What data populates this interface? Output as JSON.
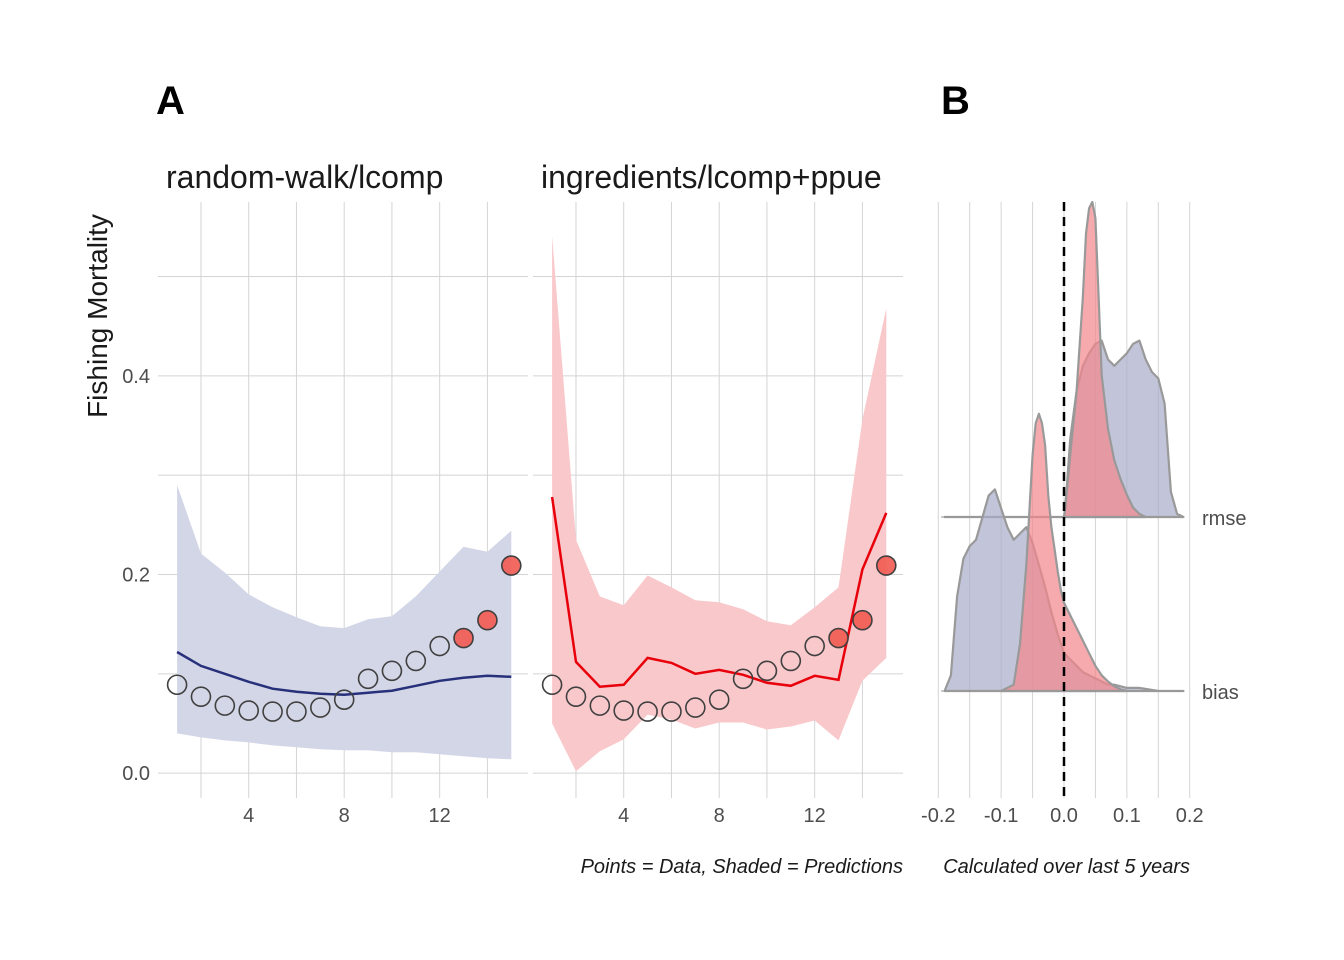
{
  "panel_labels": {
    "a": "A",
    "b": "B"
  },
  "y_axis_label": "Fishing Mortality",
  "captions": {
    "left": "Points = Data, Shaded = Predictions",
    "right": "Calculated over last 5 years"
  },
  "colors": {
    "random_walk_line": "#27307a",
    "random_walk_band": "#d3d6e6",
    "ingredients_line": "#e8000b",
    "ingredients_band": "#f9c8cb",
    "point_open_stroke": "#404040",
    "point_filled": "#f15a50",
    "density_blue": "#a8acc9",
    "density_red": "#f4868a",
    "density_outline": "#999999"
  },
  "chart_data": [
    {
      "type": "line",
      "panel": "A",
      "title": "random-walk/lcomp",
      "ylabel": "Fishing Mortality",
      "xlim": [
        0.2,
        15.7
      ],
      "ylim": [
        -0.025,
        0.575
      ],
      "x_ticks": [
        4,
        8,
        12
      ],
      "y_ticks": [
        0.0,
        0.2,
        0.4
      ],
      "y_tick_labels": [
        "0.0",
        "0.2",
        "0.4"
      ],
      "points": {
        "x": [
          1,
          2,
          3,
          4,
          5,
          6,
          7,
          8,
          9,
          10,
          11,
          12,
          13,
          14,
          15
        ],
        "y": [
          0.089,
          0.077,
          0.068,
          0.063,
          0.062,
          0.062,
          0.066,
          0.074,
          0.095,
          0.103,
          0.113,
          0.128,
          0.136,
          0.154,
          0.209
        ],
        "filled": [
          false,
          false,
          false,
          false,
          false,
          false,
          false,
          false,
          false,
          false,
          false,
          false,
          true,
          true,
          true
        ]
      },
      "prediction": {
        "x": [
          1,
          2,
          3,
          4,
          5,
          6,
          7,
          8,
          9,
          10,
          11,
          12,
          13,
          14,
          15
        ],
        "y": [
          0.122,
          0.108,
          0.1,
          0.092,
          0.085,
          0.082,
          0.08,
          0.079,
          0.081,
          0.083,
          0.088,
          0.093,
          0.096,
          0.098,
          0.097
        ],
        "lower": [
          0.04,
          0.036,
          0.033,
          0.031,
          0.028,
          0.026,
          0.024,
          0.023,
          0.023,
          0.021,
          0.021,
          0.019,
          0.017,
          0.015,
          0.014
        ],
        "upper": [
          0.29,
          0.221,
          0.202,
          0.18,
          0.167,
          0.157,
          0.148,
          0.146,
          0.155,
          0.158,
          0.178,
          0.203,
          0.228,
          0.223,
          0.244
        ]
      }
    },
    {
      "type": "line",
      "panel": "A",
      "title": "ingredients/lcomp+ppue",
      "xlim": [
        0.2,
        15.7
      ],
      "ylim": [
        -0.025,
        0.575
      ],
      "x_ticks": [
        4,
        8,
        12
      ],
      "points": {
        "x": [
          1,
          2,
          3,
          4,
          5,
          6,
          7,
          8,
          9,
          10,
          11,
          12,
          13,
          14,
          15
        ],
        "y": [
          0.089,
          0.077,
          0.068,
          0.063,
          0.062,
          0.062,
          0.066,
          0.074,
          0.095,
          0.103,
          0.113,
          0.128,
          0.136,
          0.154,
          0.209
        ],
        "filled": [
          false,
          false,
          false,
          false,
          false,
          false,
          false,
          false,
          false,
          false,
          false,
          false,
          true,
          true,
          true
        ]
      },
      "prediction": {
        "x": [
          1,
          2,
          3,
          4,
          5,
          6,
          7,
          8,
          9,
          10,
          11,
          12,
          13,
          14,
          15
        ],
        "y": [
          0.278,
          0.112,
          0.087,
          0.089,
          0.116,
          0.111,
          0.1,
          0.104,
          0.099,
          0.091,
          0.088,
          0.098,
          0.094,
          0.205,
          0.262
        ],
        "lower": [
          0.05,
          0.002,
          0.022,
          0.034,
          0.059,
          0.054,
          0.045,
          0.051,
          0.051,
          0.044,
          0.047,
          0.053,
          0.033,
          0.093,
          0.116
        ],
        "upper": [
          0.541,
          0.235,
          0.178,
          0.169,
          0.199,
          0.187,
          0.174,
          0.172,
          0.165,
          0.153,
          0.149,
          0.167,
          0.187,
          0.356,
          0.468
        ]
      }
    },
    {
      "type": "area",
      "panel": "B",
      "subtype": "ridgeline-density",
      "xlim": [
        -0.21,
        0.21
      ],
      "x_ticks": [
        -0.2,
        -0.1,
        0.0,
        0.1,
        0.2
      ],
      "x_tick_labels": [
        "-0.2",
        "-0.1",
        "0.0",
        "0.1",
        "0.2"
      ],
      "categories": [
        "bias",
        "rmse"
      ],
      "reference_line_x": 0.0,
      "series": [
        {
          "category": "rmse",
          "color": "blue",
          "x": [
            -0.19,
            0.0,
            0.002,
            0.01,
            0.02,
            0.03,
            0.04,
            0.05,
            0.06,
            0.07,
            0.08,
            0.09,
            0.1,
            0.11,
            0.12,
            0.13,
            0.14,
            0.15,
            0.16,
            0.17,
            0.18,
            0.19
          ],
          "density": [
            0.0,
            0.0,
            0.03,
            0.25,
            0.4,
            0.48,
            0.52,
            0.55,
            0.56,
            0.5,
            0.48,
            0.5,
            0.52,
            0.55,
            0.56,
            0.5,
            0.46,
            0.44,
            0.36,
            0.08,
            0.01,
            0.0
          ]
        },
        {
          "category": "rmse",
          "color": "red",
          "x": [
            0.0,
            0.002,
            0.01,
            0.02,
            0.03,
            0.035,
            0.04,
            0.045,
            0.05,
            0.055,
            0.06,
            0.07,
            0.08,
            0.09,
            0.1,
            0.11,
            0.12,
            0.13
          ],
          "density": [
            0.0,
            0.03,
            0.2,
            0.4,
            0.7,
            0.9,
            0.98,
            1.0,
            0.95,
            0.7,
            0.45,
            0.28,
            0.18,
            0.12,
            0.07,
            0.03,
            0.01,
            0.0
          ]
        },
        {
          "category": "bias",
          "color": "blue",
          "x": [
            -0.19,
            -0.18,
            -0.17,
            -0.16,
            -0.15,
            -0.14,
            -0.13,
            -0.12,
            -0.11,
            -0.1,
            -0.09,
            -0.08,
            -0.07,
            -0.06,
            -0.05,
            -0.04,
            -0.03,
            -0.02,
            -0.01,
            0.0,
            0.01,
            0.02,
            0.03,
            0.04,
            0.05,
            0.06,
            0.07,
            0.08,
            0.1,
            0.12,
            0.15,
            0.19
          ],
          "density": [
            0.0,
            0.05,
            0.3,
            0.42,
            0.46,
            0.48,
            0.55,
            0.62,
            0.64,
            0.58,
            0.52,
            0.48,
            0.5,
            0.52,
            0.47,
            0.4,
            0.33,
            0.25,
            0.18,
            0.12,
            0.1,
            0.08,
            0.06,
            0.05,
            0.04,
            0.03,
            0.02,
            0.02,
            0.01,
            0.01,
            0.0,
            0.0
          ]
        },
        {
          "category": "bias",
          "color": "red",
          "x": [
            -0.1,
            -0.08,
            -0.07,
            -0.06,
            -0.05,
            -0.045,
            -0.04,
            -0.035,
            -0.03,
            -0.025,
            -0.02,
            -0.015,
            -0.01,
            -0.005,
            0.0,
            0.01,
            0.02,
            0.03,
            0.04,
            0.05,
            0.06,
            0.07,
            0.08,
            0.09,
            0.1
          ],
          "density": [
            0.0,
            0.02,
            0.15,
            0.4,
            0.75,
            0.85,
            0.88,
            0.85,
            0.78,
            0.62,
            0.52,
            0.45,
            0.38,
            0.32,
            0.28,
            0.24,
            0.2,
            0.16,
            0.12,
            0.08,
            0.05,
            0.03,
            0.015,
            0.005,
            0.0
          ]
        }
      ]
    }
  ]
}
